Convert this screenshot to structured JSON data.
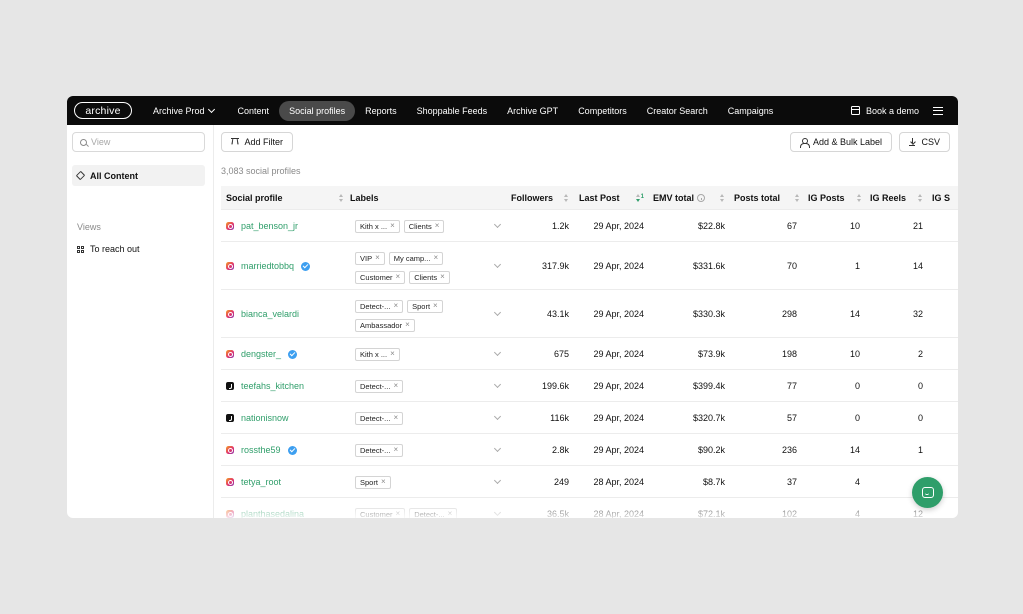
{
  "nav": {
    "logo": "archive",
    "workspace": "Archive Prod",
    "items": [
      "Content",
      "Social profiles",
      "Reports",
      "Shoppable Feeds",
      "Archive GPT",
      "Competitors",
      "Creator Search",
      "Campaigns"
    ],
    "active": "Social profiles",
    "book_demo": "Book a demo"
  },
  "sidebar": {
    "search_placeholder": "View",
    "all_content": "All Content",
    "views_label": "Views",
    "views": [
      "To reach out"
    ]
  },
  "toolbar": {
    "add_filter": "Add Filter",
    "bulk_label": "Add & Bulk Label",
    "csv": "CSV"
  },
  "count_text": "3,083 social profiles",
  "table": {
    "columns": [
      "Social profile",
      "Labels",
      "Followers",
      "Last Post",
      "EMV total",
      "Posts total",
      "IG Posts",
      "IG Reels",
      "IG S"
    ],
    "sort_indicator": "1",
    "rows": [
      {
        "profile": "pat_benson_jr",
        "platform": "instagram",
        "verified": false,
        "labels": [
          "Kith x ...",
          "Clients"
        ],
        "followers": "1.2k",
        "last_post": "29 Apr, 2024",
        "emv": "$22.8k",
        "posts_total": "67",
        "ig_posts": "10",
        "ig_reels": "21"
      },
      {
        "profile": "marriedtobbq",
        "platform": "instagram",
        "verified": true,
        "labels": [
          "VIP",
          "My camp...",
          "Customer",
          "Clients"
        ],
        "followers": "317.9k",
        "last_post": "29 Apr, 2024",
        "emv": "$331.6k",
        "posts_total": "70",
        "ig_posts": "1",
        "ig_reels": "14"
      },
      {
        "profile": "bianca_velardi",
        "platform": "instagram",
        "verified": false,
        "labels": [
          "Detect-...",
          "Sport",
          "Ambassador"
        ],
        "followers": "43.1k",
        "last_post": "29 Apr, 2024",
        "emv": "$330.3k",
        "posts_total": "298",
        "ig_posts": "14",
        "ig_reels": "32"
      },
      {
        "profile": "dengster_",
        "platform": "instagram",
        "verified": true,
        "labels": [
          "Kith x ..."
        ],
        "followers": "675",
        "last_post": "29 Apr, 2024",
        "emv": "$73.9k",
        "posts_total": "198",
        "ig_posts": "10",
        "ig_reels": "2"
      },
      {
        "profile": "teefahs_kitchen",
        "platform": "tiktok",
        "verified": false,
        "labels": [
          "Detect-..."
        ],
        "followers": "199.6k",
        "last_post": "29 Apr, 2024",
        "emv": "$399.4k",
        "posts_total": "77",
        "ig_posts": "0",
        "ig_reels": "0"
      },
      {
        "profile": "nationisnow",
        "platform": "tiktok",
        "verified": false,
        "labels": [
          "Detect-..."
        ],
        "followers": "116k",
        "last_post": "29 Apr, 2024",
        "emv": "$320.7k",
        "posts_total": "57",
        "ig_posts": "0",
        "ig_reels": "0"
      },
      {
        "profile": "rossthe59",
        "platform": "instagram",
        "verified": true,
        "labels": [
          "Detect-..."
        ],
        "followers": "2.8k",
        "last_post": "29 Apr, 2024",
        "emv": "$90.2k",
        "posts_total": "236",
        "ig_posts": "14",
        "ig_reels": "1"
      },
      {
        "profile": "tetya_root",
        "platform": "instagram",
        "verified": false,
        "labels": [
          "Sport"
        ],
        "followers": "249",
        "last_post": "28 Apr, 2024",
        "emv": "$8.7k",
        "posts_total": "37",
        "ig_posts": "4",
        "ig_reels": ""
      },
      {
        "profile": "planthasedalina",
        "platform": "instagram",
        "verified": false,
        "labels": [
          "Customer",
          "Detect-..."
        ],
        "followers": "36.5k",
        "last_post": "28 Apr, 2024",
        "emv": "$72.1k",
        "posts_total": "102",
        "ig_posts": "4",
        "ig_reels": "12"
      }
    ]
  },
  "colors": {
    "accent": "#2f9e6a",
    "nav_bg": "#0b0b0b",
    "verified": "#3d9ff0"
  }
}
